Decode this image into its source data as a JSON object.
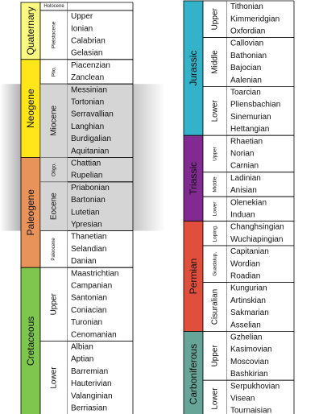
{
  "colors": {
    "quaternary": "#F9F97F",
    "neogene": "#FFE619",
    "paleogene": "#E8935A",
    "cretaceous": "#7FC64E",
    "jurassic": "#34B2C9",
    "triassic": "#812B92",
    "permian": "#E04F3C",
    "carboniferous": "#67A599",
    "highlight": "#b3b3b3"
  },
  "left_column": {
    "periods": [
      {
        "name": "Quaternary",
        "color_key": "quaternary",
        "epochs": [
          {
            "name": "Holocene",
            "size": "tiny",
            "ages": [
              ""
            ]
          },
          {
            "name": "Pleistocene",
            "size": "small",
            "ages": [
              "Upper",
              "Ionian",
              "Calabrian",
              "Gelasian"
            ]
          }
        ]
      },
      {
        "name": "Neogene",
        "color_key": "neogene",
        "epochs": [
          {
            "name": "Plio.",
            "size": "small",
            "ages": [
              "Piacenzian",
              "Zanclean"
            ]
          },
          {
            "name": "Miocene",
            "size": "normal",
            "ages": [
              "Messinian",
              "Tortonian",
              "Serravallian",
              "Langhian",
              "Burdigalian",
              "Aquitanian"
            ]
          }
        ]
      },
      {
        "name": "Paleogene",
        "color_key": "paleogene",
        "epochs": [
          {
            "name": "Oligo.",
            "size": "small",
            "ages": [
              "Chattian",
              "Rupelian"
            ]
          },
          {
            "name": "Eocene",
            "size": "normal",
            "ages": [
              "Priabonian",
              "Bartonian",
              "Lutetian",
              "Ypresian"
            ]
          },
          {
            "name": "Paleocene",
            "size": "tiny",
            "ages": [
              "Thanetian",
              "Selandian",
              "Danian"
            ]
          }
        ]
      },
      {
        "name": "Cretaceous",
        "color_key": "cretaceous",
        "epochs": [
          {
            "name": "Upper",
            "size": "normal",
            "ages": [
              "Maastrichtian",
              "Campanian",
              "Santonian",
              "Coniacian",
              "Turonian",
              "Cenomanian"
            ]
          },
          {
            "name": "Lower",
            "size": "normal",
            "ages": [
              "Albian",
              "Aptian",
              "Barremian",
              "Hauterivian",
              "Valanginian",
              "Berriasian"
            ]
          }
        ]
      }
    ]
  },
  "right_column": {
    "periods": [
      {
        "name": "Jurassic",
        "color_key": "jurassic",
        "epochs": [
          {
            "name": "Upper",
            "size": "normal",
            "ages": [
              "Tithonian",
              "Kimmeridgian",
              "Oxfordian"
            ]
          },
          {
            "name": "Middle",
            "size": "normal",
            "ages": [
              "Callovian",
              "Bathonian",
              "Bajocian",
              "Aalenian"
            ]
          },
          {
            "name": "Lower",
            "size": "normal",
            "ages": [
              "Toarcian",
              "Pliensbachian",
              "Sinemurian",
              "Hettangian"
            ]
          }
        ]
      },
      {
        "name": "Triassic",
        "color_key": "triassic",
        "epochs": [
          {
            "name": "Upper",
            "size": "small",
            "ages": [
              "Rhaetian",
              "Norian",
              "Carnian"
            ]
          },
          {
            "name": "Middle",
            "size": "small",
            "ages": [
              "Ladinian",
              "Anisian"
            ]
          },
          {
            "name": "Lower",
            "size": "small",
            "ages": [
              "Olenekian",
              "Induan"
            ]
          }
        ]
      },
      {
        "name": "Permian",
        "color_key": "permian",
        "epochs": [
          {
            "name": "Loping.",
            "size": "small",
            "ages": [
              "Changhsingian",
              "Wuchiapingian"
            ]
          },
          {
            "name": "Guadalup.",
            "size": "small",
            "ages": [
              "Capitanian",
              "Wordian",
              "Roadian"
            ]
          },
          {
            "name": "Cisuralian",
            "size": "normal",
            "ages": [
              "Kungurian",
              "Artinskian",
              "Sakmarian",
              "Asselian"
            ]
          }
        ]
      },
      {
        "name": "Carboniferous",
        "color_key": "carboniferous",
        "epochs": [
          {
            "name": "Upper",
            "size": "normal",
            "ages": [
              "Gzhelian",
              "Kasimovian",
              "Moscovian",
              "Bashkirian"
            ]
          },
          {
            "name": "Lower",
            "size": "normal",
            "ages": [
              "Serpukhovian",
              "Visean",
              "Tournaisian"
            ]
          }
        ]
      }
    ]
  }
}
